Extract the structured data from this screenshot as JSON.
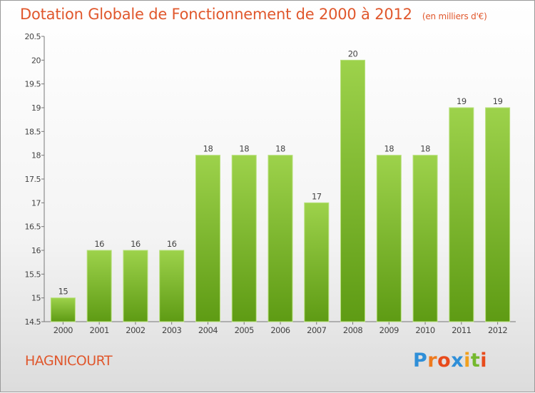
{
  "header": {
    "title": "Dotation Globale de Fonctionnement de 2000 à 2012",
    "unit": "(en milliers d'€)"
  },
  "footer": {
    "commune": "HAGNICOURT",
    "brand": "Proxiti",
    "brand_colors": [
      "#2f8fd8",
      "#ee7a1e",
      "#e84b1c",
      "#2f8fd8",
      "#f1a01e",
      "#74b82d",
      "#e84b1c"
    ]
  },
  "chart_data": {
    "type": "bar",
    "categories": [
      "2000",
      "2001",
      "2002",
      "2003",
      "2004",
      "2005",
      "2006",
      "2007",
      "2008",
      "2009",
      "2010",
      "2011",
      "2012"
    ],
    "values": [
      15,
      16,
      16,
      16,
      18,
      18,
      18,
      17,
      20,
      18,
      18,
      19,
      19
    ],
    "value_labels": [
      "15",
      "16",
      "16",
      "16",
      "18",
      "18",
      "18",
      "17",
      "20",
      "18",
      "18",
      "19",
      "19"
    ],
    "yticks": [
      "14.5",
      "15",
      "15.5",
      "16",
      "16.5",
      "17",
      "17.5",
      "18",
      "18.5",
      "19",
      "19.5",
      "20",
      "20.5"
    ],
    "ylim": [
      14.5,
      20.5
    ],
    "bar_color": "#7cbd2f",
    "grid": false
  }
}
